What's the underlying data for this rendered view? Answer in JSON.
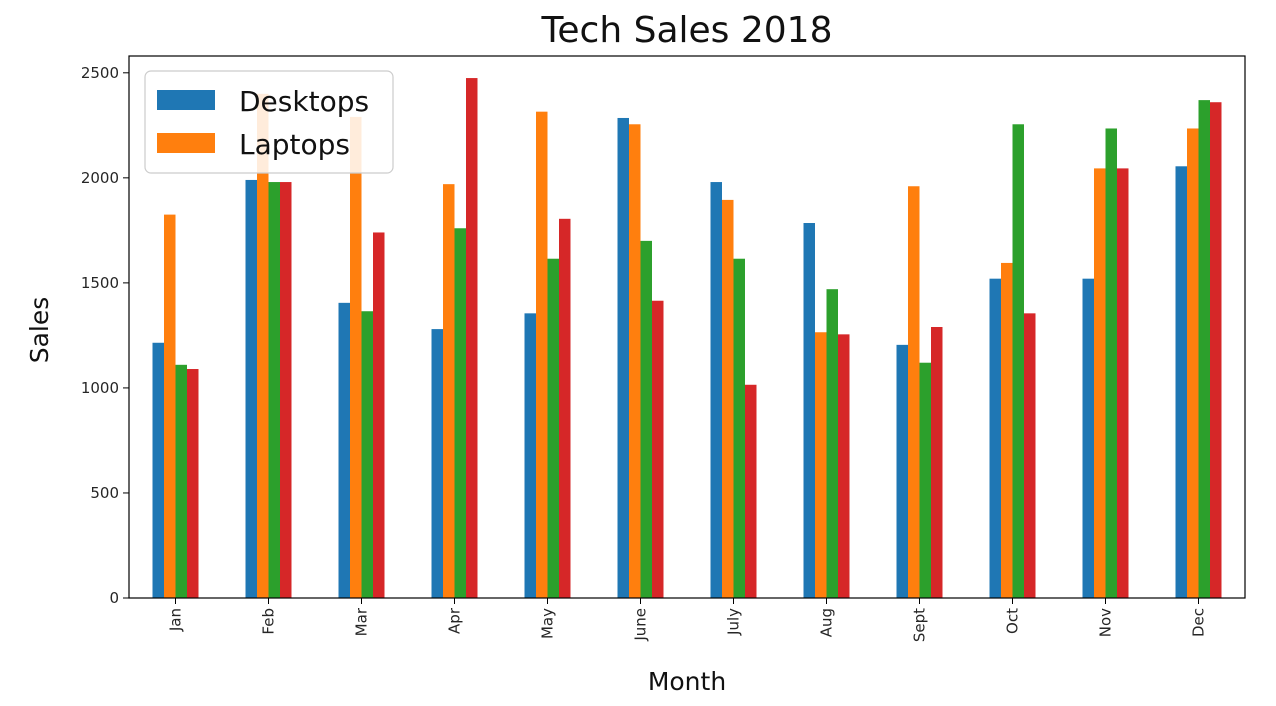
{
  "chart_data": {
    "type": "bar",
    "title": "Tech Sales 2018",
    "xlabel": "Month",
    "ylabel": "Sales",
    "categories": [
      "Jan",
      "Feb",
      "Mar",
      "Apr",
      "May",
      "June",
      "July",
      "Aug",
      "Sept",
      "Oct",
      "Nov",
      "Dec"
    ],
    "ylim": [
      0,
      2580
    ],
    "yticks": [
      0,
      500,
      1000,
      1500,
      2000,
      2500
    ],
    "grid": false,
    "legend_position": "top-left",
    "series": [
      {
        "name": "Desktops",
        "color": "#1f77b4",
        "values": [
          1215,
          1990,
          1405,
          1280,
          1355,
          2285,
          1980,
          1785,
          1205,
          1520,
          1520,
          2055
        ]
      },
      {
        "name": "Laptops",
        "color": "#ff7f0e",
        "values": [
          1825,
          2400,
          2290,
          1970,
          2315,
          2255,
          1895,
          1265,
          1960,
          1595,
          2045,
          2235
        ]
      },
      {
        "color": "#2ca02c",
        "values": [
          1110,
          1980,
          1365,
          1760,
          1615,
          1700,
          1615,
          1470,
          1120,
          2255,
          2235,
          2370
        ]
      },
      {
        "color": "#d62728",
        "values": [
          1090,
          1980,
          1740,
          2475,
          1805,
          1415,
          1015,
          1255,
          1290,
          1355,
          2045,
          2360
        ]
      }
    ]
  }
}
